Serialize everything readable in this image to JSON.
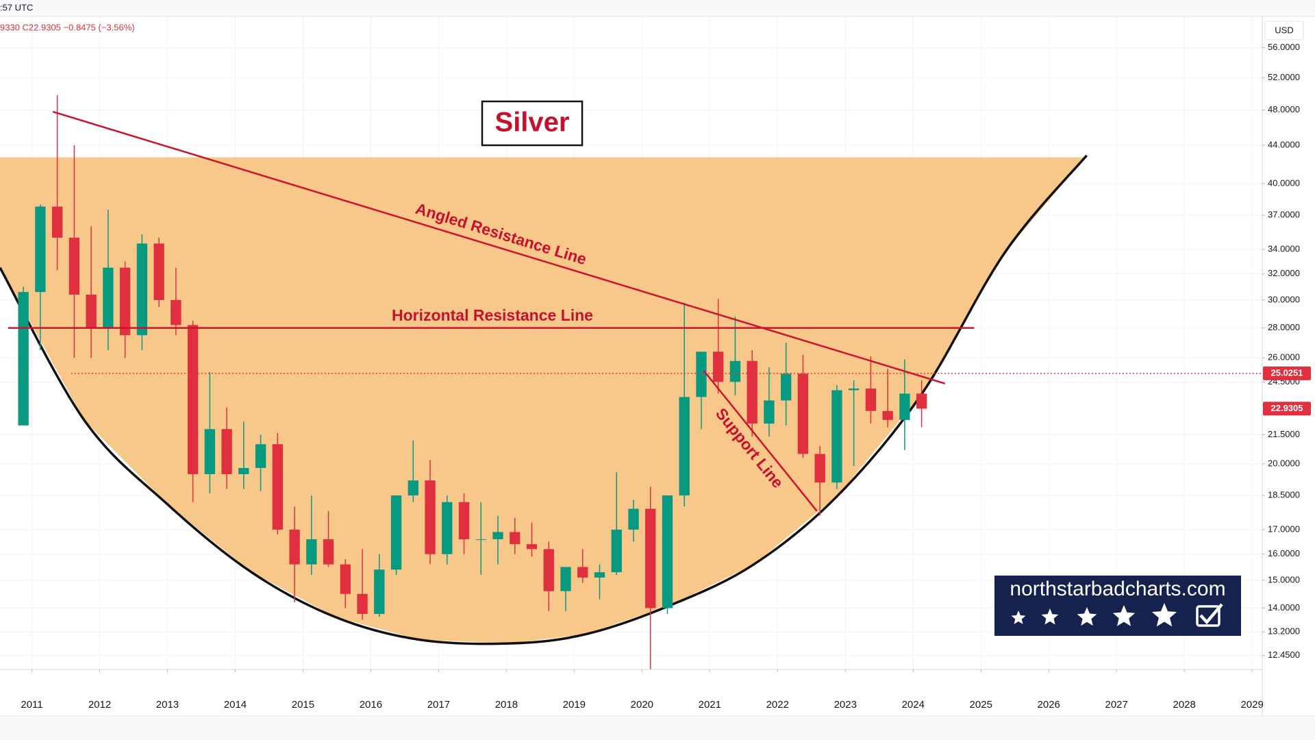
{
  "chart_data": {
    "type": "candlestick",
    "title": "Silver",
    "header_time": ":57 UTC",
    "ohlc_text": "9330  C22.9305  −0.8475 (−3.56%)",
    "currency": "USD",
    "watermark": "northstarbadcharts.com",
    "log_scale": true,
    "grid": true,
    "up_color": "#089981",
    "down_color": "#e0303f",
    "xlim": [
      2010.53,
      2029.15
    ],
    "xticks": [
      2011,
      2012,
      2013,
      2014,
      2015,
      2016,
      2017,
      2018,
      2019,
      2020,
      2021,
      2022,
      2023,
      2024,
      2025,
      2026,
      2027,
      2028,
      2029
    ],
    "ylim": [
      12.03,
      60.5
    ],
    "yticks": [
      {
        "value": 56,
        "label": "56.0000"
      },
      {
        "value": 52,
        "label": "52.0000"
      },
      {
        "value": 48,
        "label": "48.0000"
      },
      {
        "value": 44,
        "label": "44.0000"
      },
      {
        "value": 40,
        "label": "40.0000"
      },
      {
        "value": 37,
        "label": "37.0000"
      },
      {
        "value": 34,
        "label": "34.0000"
      },
      {
        "value": 32,
        "label": "32.0000"
      },
      {
        "value": 30,
        "label": "30.0000"
      },
      {
        "value": 28,
        "label": "28.0000"
      },
      {
        "value": 26,
        "label": "26.0000"
      },
      {
        "value": 24.5,
        "label": "24.5000"
      },
      {
        "value": 21.5,
        "label": "21.5000"
      },
      {
        "value": 20,
        "label": "20.0000"
      },
      {
        "value": 18.5,
        "label": "18.5000"
      },
      {
        "value": 17,
        "label": "17.0000"
      },
      {
        "value": 16,
        "label": "16.0000"
      },
      {
        "value": 15,
        "label": "15.0000"
      },
      {
        "value": 14,
        "label": "14.0000"
      },
      {
        "value": 13.2,
        "label": "13.2000"
      },
      {
        "value": 12.45,
        "label": "12.4500"
      }
    ],
    "x": [
      2010.875,
      2011.125,
      2011.375,
      2011.625,
      2011.875,
      2012.125,
      2012.375,
      2012.625,
      2012.875,
      2013.125,
      2013.375,
      2013.625,
      2013.875,
      2014.125,
      2014.375,
      2014.625,
      2014.875,
      2015.125,
      2015.375,
      2015.625,
      2015.875,
      2016.125,
      2016.375,
      2016.625,
      2016.875,
      2017.125,
      2017.375,
      2017.625,
      2017.875,
      2018.125,
      2018.375,
      2018.625,
      2018.875,
      2019.125,
      2019.375,
      2019.625,
      2019.875,
      2020.125,
      2020.375,
      2020.625,
      2020.875,
      2021.125,
      2021.375,
      2021.625,
      2021.875,
      2022.125,
      2022.375,
      2022.625,
      2022.875,
      2023.125,
      2023.375,
      2023.625,
      2023.875,
      2024.125
    ],
    "open": [
      22,
      30.6,
      37.8,
      35,
      30.4,
      28,
      32.5,
      27.5,
      34.5,
      30,
      28.2,
      19.5,
      21.8,
      19.5,
      19.8,
      21,
      17,
      15.6,
      16.6,
      15.6,
      14.5,
      13.8,
      15.4,
      18.5,
      19.2,
      16,
      18.2,
      16.6,
      16.6,
      16.9,
      16.4,
      16.2,
      14.6,
      15.5,
      15.1,
      15.3,
      17,
      17.9,
      14,
      18.5,
      23.6,
      26.4,
      24.5,
      25.8,
      22.1,
      23.4,
      25,
      20.5,
      19.1,
      24,
      24.1,
      22.8,
      22.3,
      23.8
    ],
    "high": [
      31,
      38,
      49.8,
      44,
      36,
      37.5,
      33,
      35.3,
      35,
      32.5,
      28.5,
      25.1,
      23,
      22.2,
      21.5,
      21.6,
      18,
      18.5,
      17.8,
      15.8,
      16.2,
      16,
      18.4,
      21.2,
      20.2,
      18.5,
      18.6,
      18.2,
      17.6,
      17.5,
      17.3,
      16.5,
      15.5,
      16.2,
      15.6,
      19.6,
      18.3,
      18.9,
      18.5,
      29.8,
      26.3,
      30.1,
      28.8,
      26.5,
      25.4,
      27,
      26.2,
      20.9,
      24.3,
      24.6,
      26.1,
      25.3,
      25.9,
      24.6
    ],
    "low": [
      22,
      26.5,
      32.3,
      26,
      26,
      26.5,
      26,
      26.5,
      29.5,
      27.5,
      18.2,
      18.6,
      18.8,
      18.8,
      18.7,
      16.8,
      14.2,
      15.2,
      15.5,
      14,
      13.6,
      13.7,
      15.2,
      18.2,
      15.6,
      15.6,
      16,
      15.2,
      15.6,
      16,
      15.9,
      13.9,
      13.9,
      14.9,
      14.3,
      15.2,
      16.5,
      11.7,
      13.8,
      18,
      21.8,
      23.8,
      23.7,
      21.4,
      21.4,
      22,
      20.3,
      17.6,
      18.8,
      19.9,
      22.1,
      21.9,
      20.7,
      21.9
    ],
    "close": [
      30.6,
      37.8,
      35,
      30.4,
      28,
      32.5,
      27.5,
      34.5,
      30,
      28.2,
      19.5,
      21.8,
      19.5,
      19.8,
      21,
      17,
      15.6,
      16.6,
      15.6,
      14.5,
      13.8,
      15.4,
      18.5,
      19.2,
      16,
      18.2,
      16.6,
      16.6,
      16.9,
      16.4,
      16.2,
      14.6,
      15.5,
      15.1,
      15.3,
      17,
      17.9,
      14,
      18.5,
      23.6,
      26.4,
      24.5,
      25.8,
      22.1,
      23.4,
      25,
      20.5,
      19.1,
      24,
      24.1,
      22.8,
      22.3,
      23.8,
      22.9305
    ],
    "level": {
      "value": 25.0251,
      "x_start": 2011.58
    },
    "cup": {
      "color": "#f7c88a",
      "fill_top": 42.7,
      "x": [
        2010.53,
        2011.77,
        2013.0,
        2014.24,
        2015.47,
        2016.71,
        2018.07,
        2019.18,
        2020.42,
        2021.65,
        2022.89,
        2024.13,
        2025.36,
        2026.56
      ],
      "y": [
        32.5,
        22.3,
        18.1,
        15.3,
        13.7,
        12.95,
        12.83,
        13.13,
        14.1,
        15.6,
        18.5,
        23.8,
        33.8,
        42.9
      ]
    },
    "lines": [
      {
        "label": "Angled Resistance Line",
        "color": "#d0102f",
        "x": [
          2011.31,
          2024.47
        ],
        "y": [
          47.8,
          24.4
        ]
      },
      {
        "label": "Horizontal Resistance Line",
        "color": "#d0102f",
        "x": [
          2010.65,
          2024.9
        ],
        "y": [
          28,
          28
        ]
      },
      {
        "label": "Support Line",
        "color": "#d0102f",
        "x": [
          2020.91,
          2022.58
        ],
        "y": [
          25.2,
          17.8
        ]
      }
    ]
  }
}
